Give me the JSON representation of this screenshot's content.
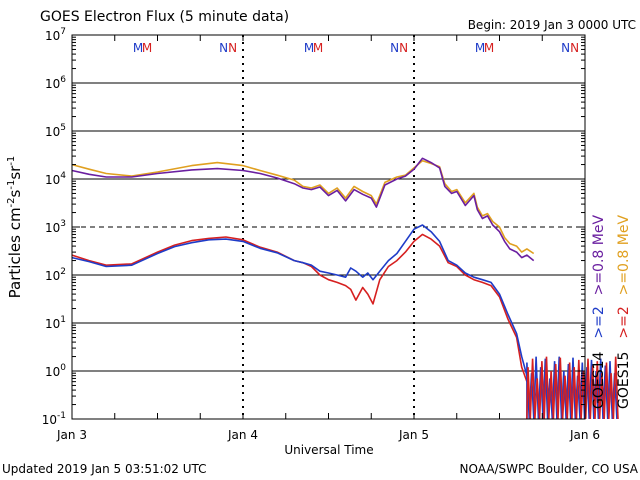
{
  "chart_data": {
    "type": "line",
    "title": "GOES Electron Flux (5 minute data)",
    "begin_label": "Begin: 2019 Jan 3 0000 UTC",
    "xlabel": "Universal Time",
    "ylabel_main": "Particles cm",
    "ylabel_sup1": "-2",
    "ylabel_mid1": "s",
    "ylabel_sup2": "-1",
    "ylabel_mid2": "sr",
    "ylabel_sup3": "-1",
    "x_range_days": [
      0,
      3
    ],
    "y_log_range": [
      -1,
      7
    ],
    "x_ticks": [
      {
        "day": 0,
        "label": "Jan 3"
      },
      {
        "day": 1,
        "label": "Jan 4"
      },
      {
        "day": 2,
        "label": "Jan 5"
      },
      {
        "day": 3,
        "label": "Jan 6"
      }
    ],
    "y_ticks": [
      {
        "exp": 7,
        "label": "10",
        "sup": "7"
      },
      {
        "exp": 6,
        "label": "10",
        "sup": "6"
      },
      {
        "exp": 5,
        "label": "10",
        "sup": "5"
      },
      {
        "exp": 4,
        "label": "10",
        "sup": "4"
      },
      {
        "exp": 3,
        "label": "10",
        "sup": "3"
      },
      {
        "exp": 2,
        "label": "10",
        "sup": "2"
      },
      {
        "exp": 1,
        "label": "10",
        "sup": "1"
      },
      {
        "exp": 0,
        "label": "10",
        "sup": "0"
      },
      {
        "exp": -1,
        "label": "10",
        "sup": "-1"
      }
    ],
    "threshold": {
      "exp": 3,
      "style": "dashed"
    },
    "mn_markers": [
      {
        "day": 0.41,
        "labels": [
          {
            "text": "M",
            "color": "#1f3cc8"
          },
          {
            "text": "M",
            "color": "#d62020"
          }
        ]
      },
      {
        "day": 0.91,
        "labels": [
          {
            "text": "N",
            "color": "#1f3cc8"
          },
          {
            "text": "N",
            "color": "#d62020"
          }
        ]
      },
      {
        "day": 1.41,
        "labels": [
          {
            "text": "M",
            "color": "#1f3cc8"
          },
          {
            "text": "M",
            "color": "#d62020"
          }
        ]
      },
      {
        "day": 1.91,
        "labels": [
          {
            "text": "N",
            "color": "#1f3cc8"
          },
          {
            "text": "N",
            "color": "#d62020"
          }
        ]
      },
      {
        "day": 2.41,
        "labels": [
          {
            "text": "M",
            "color": "#1f3cc8"
          },
          {
            "text": "M",
            "color": "#d62020"
          }
        ]
      },
      {
        "day": 2.91,
        "labels": [
          {
            "text": "N",
            "color": "#1f3cc8"
          },
          {
            "text": "N",
            "color": "#d62020"
          }
        ]
      }
    ],
    "legend": {
      "col1": [
        {
          "text": "GOES14",
          "color": "#000000"
        },
        {
          "text": ">=2",
          "color": "#1f3cc8"
        },
        {
          "text": ">=0.8 MeV",
          "color": "#6a1fa0"
        }
      ],
      "col2": [
        {
          "text": "GOES15",
          "color": "#000000"
        },
        {
          "text": ">=2",
          "color": "#d62020"
        },
        {
          "text": ">=0.8 MeV",
          "color": "#e0a020"
        }
      ]
    },
    "series": [
      {
        "name": "GOES15 >=0.8 MeV",
        "color": "#e0a020",
        "points": [
          [
            0.0,
            20000
          ],
          [
            0.1,
            16000
          ],
          [
            0.2,
            13000
          ],
          [
            0.35,
            11500
          ],
          [
            0.5,
            14000
          ],
          [
            0.7,
            19000
          ],
          [
            0.85,
            22000
          ],
          [
            1.0,
            19000
          ],
          [
            1.1,
            15000
          ],
          [
            1.2,
            12000
          ],
          [
            1.3,
            9500
          ],
          [
            1.35,
            7000
          ],
          [
            1.4,
            6500
          ],
          [
            1.45,
            7500
          ],
          [
            1.5,
            5000
          ],
          [
            1.55,
            6500
          ],
          [
            1.6,
            4000
          ],
          [
            1.65,
            7000
          ],
          [
            1.7,
            5500
          ],
          [
            1.75,
            4500
          ],
          [
            1.78,
            3000
          ],
          [
            1.83,
            8500
          ],
          [
            1.9,
            11000
          ],
          [
            1.95,
            12000
          ],
          [
            2.0,
            17000
          ],
          [
            2.05,
            24000
          ],
          [
            2.1,
            21000
          ],
          [
            2.15,
            18000
          ],
          [
            2.18,
            8000
          ],
          [
            2.22,
            5500
          ],
          [
            2.25,
            6000
          ],
          [
            2.3,
            3200
          ],
          [
            2.35,
            5000
          ],
          [
            2.37,
            2600
          ],
          [
            2.4,
            1700
          ],
          [
            2.43,
            1900
          ],
          [
            2.46,
            1300
          ],
          [
            2.5,
            1000
          ],
          [
            2.53,
            600
          ],
          [
            2.56,
            450
          ],
          [
            2.6,
            400
          ],
          [
            2.63,
            300
          ],
          [
            2.66,
            350
          ],
          [
            2.7,
            280
          ]
        ]
      },
      {
        "name": "GOES14 >=0.8 MeV",
        "color": "#6a1fa0",
        "points": [
          [
            0.0,
            15000
          ],
          [
            0.1,
            12500
          ],
          [
            0.2,
            11000
          ],
          [
            0.35,
            11000
          ],
          [
            0.5,
            13000
          ],
          [
            0.7,
            15500
          ],
          [
            0.85,
            16500
          ],
          [
            1.0,
            15000
          ],
          [
            1.1,
            13000
          ],
          [
            1.2,
            10500
          ],
          [
            1.3,
            8000
          ],
          [
            1.35,
            6500
          ],
          [
            1.4,
            6000
          ],
          [
            1.45,
            6800
          ],
          [
            1.5,
            4500
          ],
          [
            1.55,
            5800
          ],
          [
            1.6,
            3500
          ],
          [
            1.65,
            6000
          ],
          [
            1.7,
            4800
          ],
          [
            1.75,
            4000
          ],
          [
            1.78,
            2600
          ],
          [
            1.83,
            7500
          ],
          [
            1.9,
            10000
          ],
          [
            1.95,
            11500
          ],
          [
            2.0,
            16000
          ],
          [
            2.05,
            27000
          ],
          [
            2.1,
            22000
          ],
          [
            2.15,
            17000
          ],
          [
            2.18,
            7000
          ],
          [
            2.22,
            5000
          ],
          [
            2.25,
            5500
          ],
          [
            2.3,
            2800
          ],
          [
            2.35,
            4500
          ],
          [
            2.37,
            2300
          ],
          [
            2.4,
            1500
          ],
          [
            2.43,
            1700
          ],
          [
            2.46,
            1100
          ],
          [
            2.5,
            800
          ],
          [
            2.53,
            500
          ],
          [
            2.56,
            350
          ],
          [
            2.6,
            300
          ],
          [
            2.63,
            230
          ],
          [
            2.66,
            260
          ],
          [
            2.7,
            200
          ]
        ]
      },
      {
        "name": "GOES15 >=2 MeV",
        "color": "#d62020",
        "points": [
          [
            0.0,
            260
          ],
          [
            0.1,
            200
          ],
          [
            0.2,
            160
          ],
          [
            0.35,
            170
          ],
          [
            0.5,
            300
          ],
          [
            0.6,
            420
          ],
          [
            0.7,
            520
          ],
          [
            0.8,
            580
          ],
          [
            0.9,
            620
          ],
          [
            1.0,
            540
          ],
          [
            1.1,
            380
          ],
          [
            1.2,
            300
          ],
          [
            1.3,
            200
          ],
          [
            1.35,
            180
          ],
          [
            1.4,
            150
          ],
          [
            1.45,
            100
          ],
          [
            1.5,
            80
          ],
          [
            1.55,
            70
          ],
          [
            1.6,
            60
          ],
          [
            1.63,
            50
          ],
          [
            1.66,
            30
          ],
          [
            1.7,
            55
          ],
          [
            1.73,
            40
          ],
          [
            1.76,
            25
          ],
          [
            1.8,
            80
          ],
          [
            1.85,
            150
          ],
          [
            1.9,
            200
          ],
          [
            1.95,
            300
          ],
          [
            2.0,
            500
          ],
          [
            2.05,
            700
          ],
          [
            2.1,
            560
          ],
          [
            2.15,
            400
          ],
          [
            2.2,
            180
          ],
          [
            2.25,
            150
          ],
          [
            2.3,
            100
          ],
          [
            2.35,
            80
          ],
          [
            2.4,
            70
          ],
          [
            2.45,
            60
          ],
          [
            2.5,
            35
          ],
          [
            2.55,
            12
          ],
          [
            2.6,
            5
          ],
          [
            2.63,
            1.2
          ],
          [
            2.66,
            0.6
          ]
        ]
      },
      {
        "name": "GOES14 >=2 MeV",
        "color": "#1f3cc8",
        "points": [
          [
            0.0,
            230
          ],
          [
            0.1,
            190
          ],
          [
            0.2,
            150
          ],
          [
            0.35,
            160
          ],
          [
            0.5,
            280
          ],
          [
            0.6,
            390
          ],
          [
            0.7,
            470
          ],
          [
            0.8,
            540
          ],
          [
            0.9,
            560
          ],
          [
            1.0,
            500
          ],
          [
            1.1,
            360
          ],
          [
            1.2,
            290
          ],
          [
            1.3,
            200
          ],
          [
            1.35,
            180
          ],
          [
            1.4,
            160
          ],
          [
            1.45,
            120
          ],
          [
            1.5,
            110
          ],
          [
            1.55,
            100
          ],
          [
            1.6,
            90
          ],
          [
            1.63,
            140
          ],
          [
            1.66,
            120
          ],
          [
            1.7,
            90
          ],
          [
            1.73,
            110
          ],
          [
            1.76,
            80
          ],
          [
            1.8,
            120
          ],
          [
            1.85,
            200
          ],
          [
            1.9,
            280
          ],
          [
            1.95,
            500
          ],
          [
            2.0,
            900
          ],
          [
            2.05,
            1100
          ],
          [
            2.1,
            800
          ],
          [
            2.15,
            500
          ],
          [
            2.2,
            200
          ],
          [
            2.25,
            160
          ],
          [
            2.3,
            110
          ],
          [
            2.35,
            90
          ],
          [
            2.4,
            80
          ],
          [
            2.45,
            70
          ],
          [
            2.5,
            40
          ],
          [
            2.55,
            15
          ],
          [
            2.6,
            6
          ],
          [
            2.63,
            2
          ],
          [
            2.66,
            0.8
          ]
        ]
      }
    ],
    "noise_bursts": {
      "start_day": 2.66,
      "end_day": 3.2,
      "floor_exp": -1,
      "peak_values": [
        1.5,
        0.9,
        2.0,
        1.2,
        1.8,
        0.7,
        1.6,
        2.0,
        1.0,
        1.4,
        1.9,
        0.8,
        1.5,
        1.2,
        1.7,
        1.0,
        1.8,
        1.3,
        1.6,
        0.9
      ]
    }
  },
  "footer": {
    "updated": "Updated 2019 Jan  5 03:51:02 UTC",
    "credit": "NOAA/SWPC Boulder, CO USA"
  }
}
